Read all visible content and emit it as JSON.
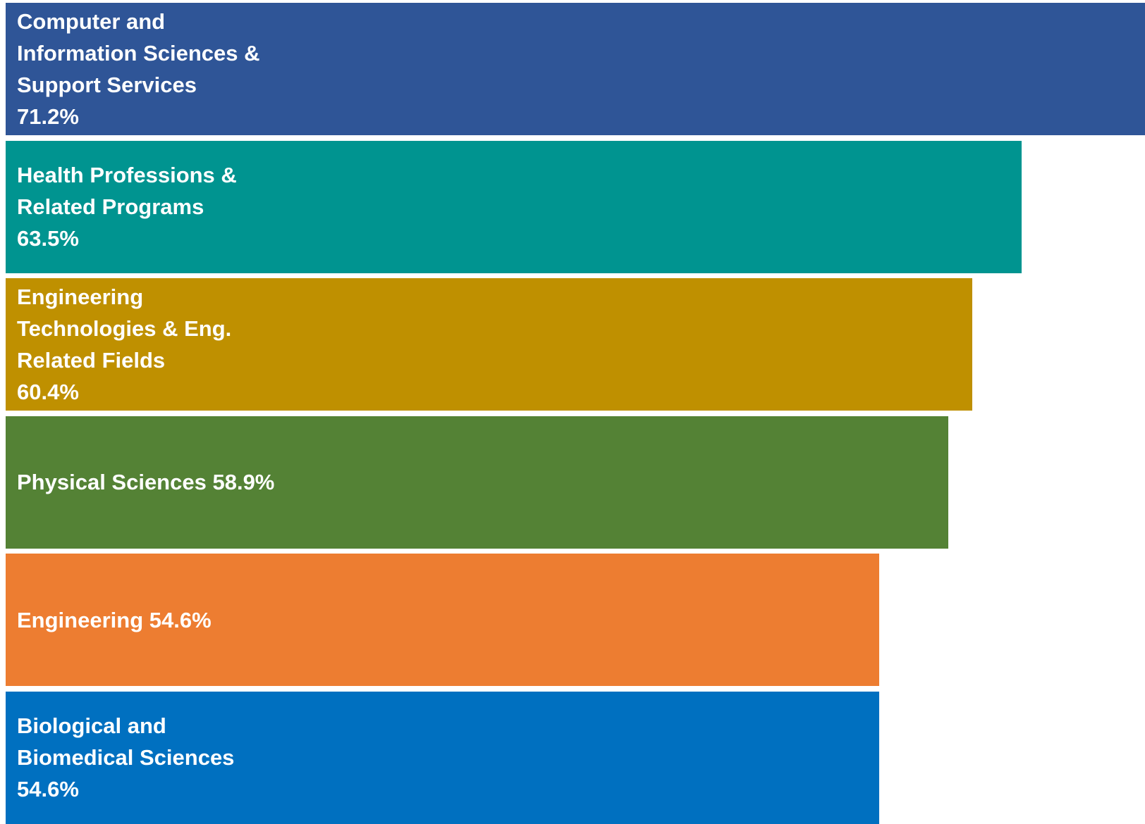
{
  "chart_data": {
    "type": "bar",
    "orientation": "horizontal",
    "categories": [
      "Computer and\nInformation Sciences &\nSupport Services",
      "Health Professions &\nRelated Programs",
      "Engineering\nTechnologies & Eng.\nRelated Fields",
      "Physical Sciences",
      "Engineering",
      "Biological and\nBiomedical Sciences"
    ],
    "values": [
      71.2,
      63.5,
      60.4,
      58.9,
      54.6,
      54.6
    ],
    "value_labels": [
      "71.2%",
      "63.5%",
      "60.4%",
      "58.9%",
      "54.6%",
      "54.6%"
    ],
    "colors": [
      "#2f5597",
      "#009490",
      "#bf9000",
      "#548235",
      "#ed7d31",
      "#0070c0"
    ]
  }
}
